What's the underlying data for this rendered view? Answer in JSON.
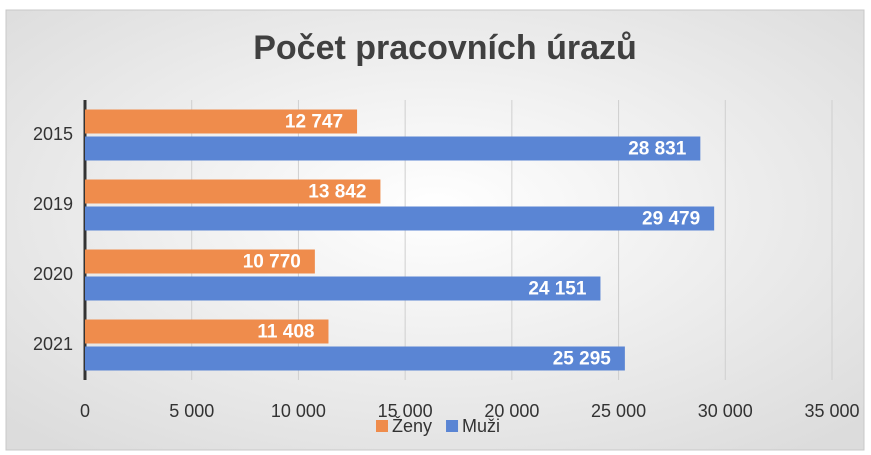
{
  "chart_data": {
    "type": "bar",
    "orientation": "horizontal",
    "title": "Počet pracovních úrazů",
    "categories": [
      "2015",
      "2019",
      "2020",
      "2021"
    ],
    "series": [
      {
        "name": "Ženy",
        "color": "#ef8c4c",
        "values": [
          12747,
          13842,
          10770,
          11408
        ],
        "value_labels": [
          "12 747",
          "13 842",
          "10 770",
          "11 408"
        ]
      },
      {
        "name": "Muži",
        "color": "#5a85d4",
        "values": [
          28831,
          29479,
          24151,
          25295
        ],
        "value_labels": [
          "28 831",
          "29 479",
          "24 151",
          "25 295"
        ]
      }
    ],
    "xlim": [
      0,
      35000
    ],
    "xticks": [
      0,
      {
        "value": 5000,
        "label": "5 000"
      },
      {
        "value": 10000,
        "label": "10 000"
      },
      {
        "value": 15000,
        "label": "15 000"
      },
      {
        "value": 20000,
        "label": "20 000"
      },
      {
        "value": 25000,
        "label": "25 000"
      },
      {
        "value": 30000,
        "label": "30 000"
      },
      {
        "value": 35000,
        "label": "35 000"
      }
    ],
    "grid": true,
    "legend": "bottom"
  }
}
